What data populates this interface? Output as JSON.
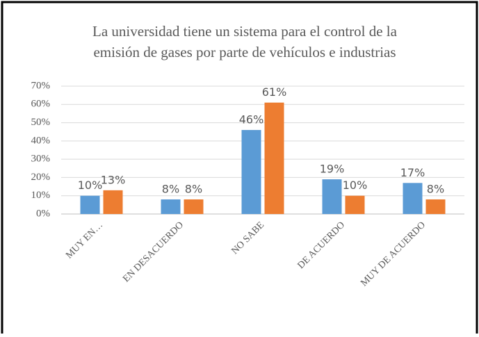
{
  "chart_data": {
    "type": "bar",
    "title": [
      "La universidad tiene un sistema para el control de la",
      "emisión de gases por parte de vehículos e industrias"
    ],
    "categories": [
      "MUY EN…",
      "EN DESACUERDO",
      "NO SABE",
      "DE ACUERDO",
      "MUY DE ACUERDO"
    ],
    "series": [
      {
        "color": "#5b9bd5",
        "values": [
          10,
          8,
          46,
          19,
          17
        ],
        "value_labels": [
          "10%",
          "8%",
          "46%",
          "19%",
          "17%"
        ]
      },
      {
        "color": "#ed7d31",
        "values": [
          13,
          8,
          61,
          10,
          8
        ],
        "value_labels": [
          "13%",
          "8%",
          "61%",
          "10%",
          "8%"
        ]
      }
    ],
    "ylim": [
      0,
      70
    ],
    "yticks": [
      {
        "value": 0,
        "label": "0%"
      },
      {
        "value": 10,
        "label": "10%"
      },
      {
        "value": 20,
        "label": "20%"
      },
      {
        "value": 30,
        "label": "30%"
      },
      {
        "value": 40,
        "label": "40%"
      },
      {
        "value": 50,
        "label": "50%"
      },
      {
        "value": 60,
        "label": "60%"
      },
      {
        "value": 70,
        "label": "70%"
      }
    ],
    "grid": true
  }
}
